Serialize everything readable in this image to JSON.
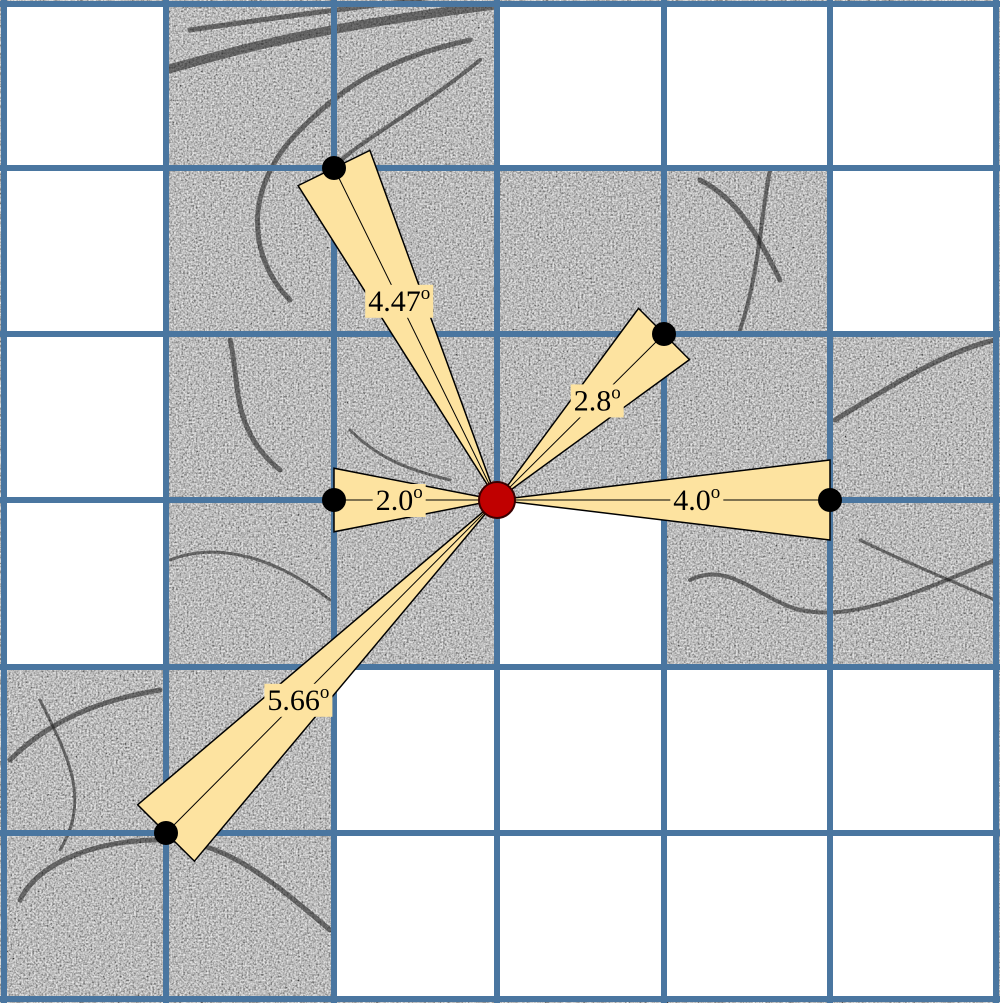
{
  "grid": {
    "rows": 6,
    "cols": 6,
    "line_color": "#4a76a0",
    "empty_color": "#ffffff",
    "tiles": [
      [
        0,
        1,
        1,
        0,
        0,
        0
      ],
      [
        0,
        1,
        1,
        1,
        1,
        0
      ],
      [
        0,
        1,
        1,
        1,
        1,
        1
      ],
      [
        0,
        1,
        1,
        0,
        1,
        1
      ],
      [
        1,
        1,
        0,
        0,
        0,
        0
      ],
      [
        1,
        1,
        0,
        0,
        0,
        0
      ]
    ]
  },
  "center": {
    "color": "#c00000"
  },
  "wedge_color": "#fde3a0",
  "measurements": [
    {
      "label": "2.0",
      "unit": "o",
      "target": [
        2,
        3
      ]
    },
    {
      "label": "4.47",
      "unit": "o",
      "target": [
        2,
        1
      ]
    },
    {
      "label": "2.8",
      "unit": "o",
      "target": [
        4,
        2
      ]
    },
    {
      "label": "4.0",
      "unit": "o",
      "target": [
        5,
        3
      ]
    },
    {
      "label": "5.66",
      "unit": "o",
      "target": [
        1,
        5
      ]
    }
  ]
}
